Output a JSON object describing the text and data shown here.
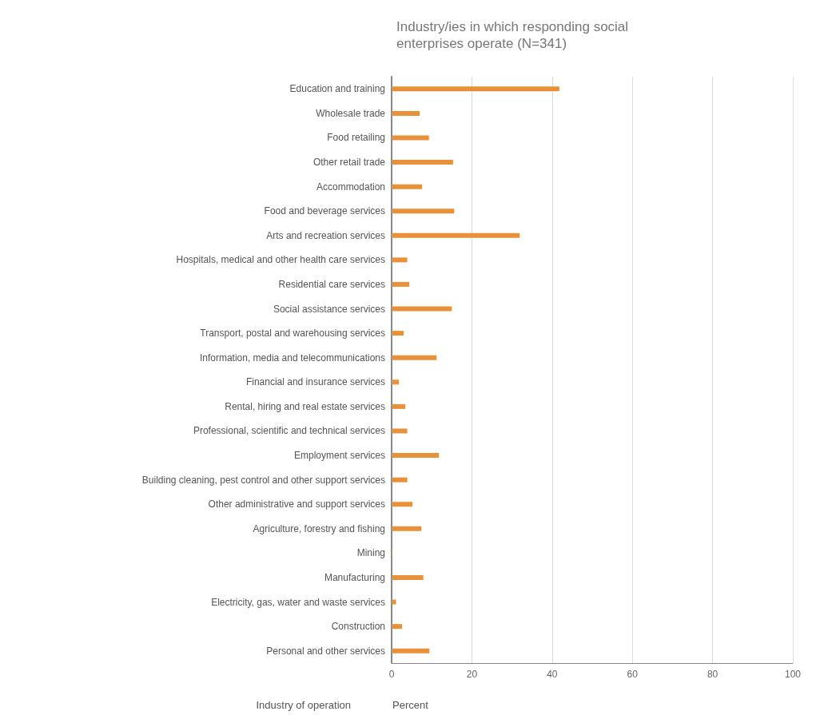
{
  "chart_data": {
    "type": "bar",
    "orientation": "horizontal",
    "title": "Industry/ies in which responding social enterprises operate (N=341)",
    "xlabel": "Percent",
    "ylabel": "Industry of operation",
    "categories": [
      "Education and training",
      "Wholesale trade",
      "Food retailing",
      "Other retail trade",
      "Accommodation",
      "Food and beverage services",
      "Arts and recreation services",
      "Hospitals, medical and other health care services",
      "Residential care services",
      "Social assistance services",
      "Transport, postal and warehousing services",
      "Information, media and telecommunications",
      "Financial and insurance services",
      "Rental, hiring and real estate services",
      "Professional, scientific and technical services",
      "Employment services",
      "Building cleaning, pest control and other support services",
      "Other administrative and support services",
      "Agriculture, forestry and fishing",
      "Mining",
      "Manufacturing",
      "Electricity, gas, water and waste services",
      "Construction",
      "Personal and other services"
    ],
    "values": [
      41.8,
      7.0,
      9.3,
      15.3,
      7.6,
      15.6,
      31.9,
      3.9,
      4.4,
      15.0,
      3.0,
      11.2,
      1.8,
      3.4,
      3.9,
      11.8,
      3.9,
      5.2,
      7.4,
      0.1,
      7.9,
      1.1,
      2.6,
      9.4
    ],
    "color": "#e8913a",
    "xlim": [
      0,
      100
    ],
    "xticks": [
      0,
      20,
      40,
      60,
      80,
      100
    ],
    "grid": "x"
  }
}
